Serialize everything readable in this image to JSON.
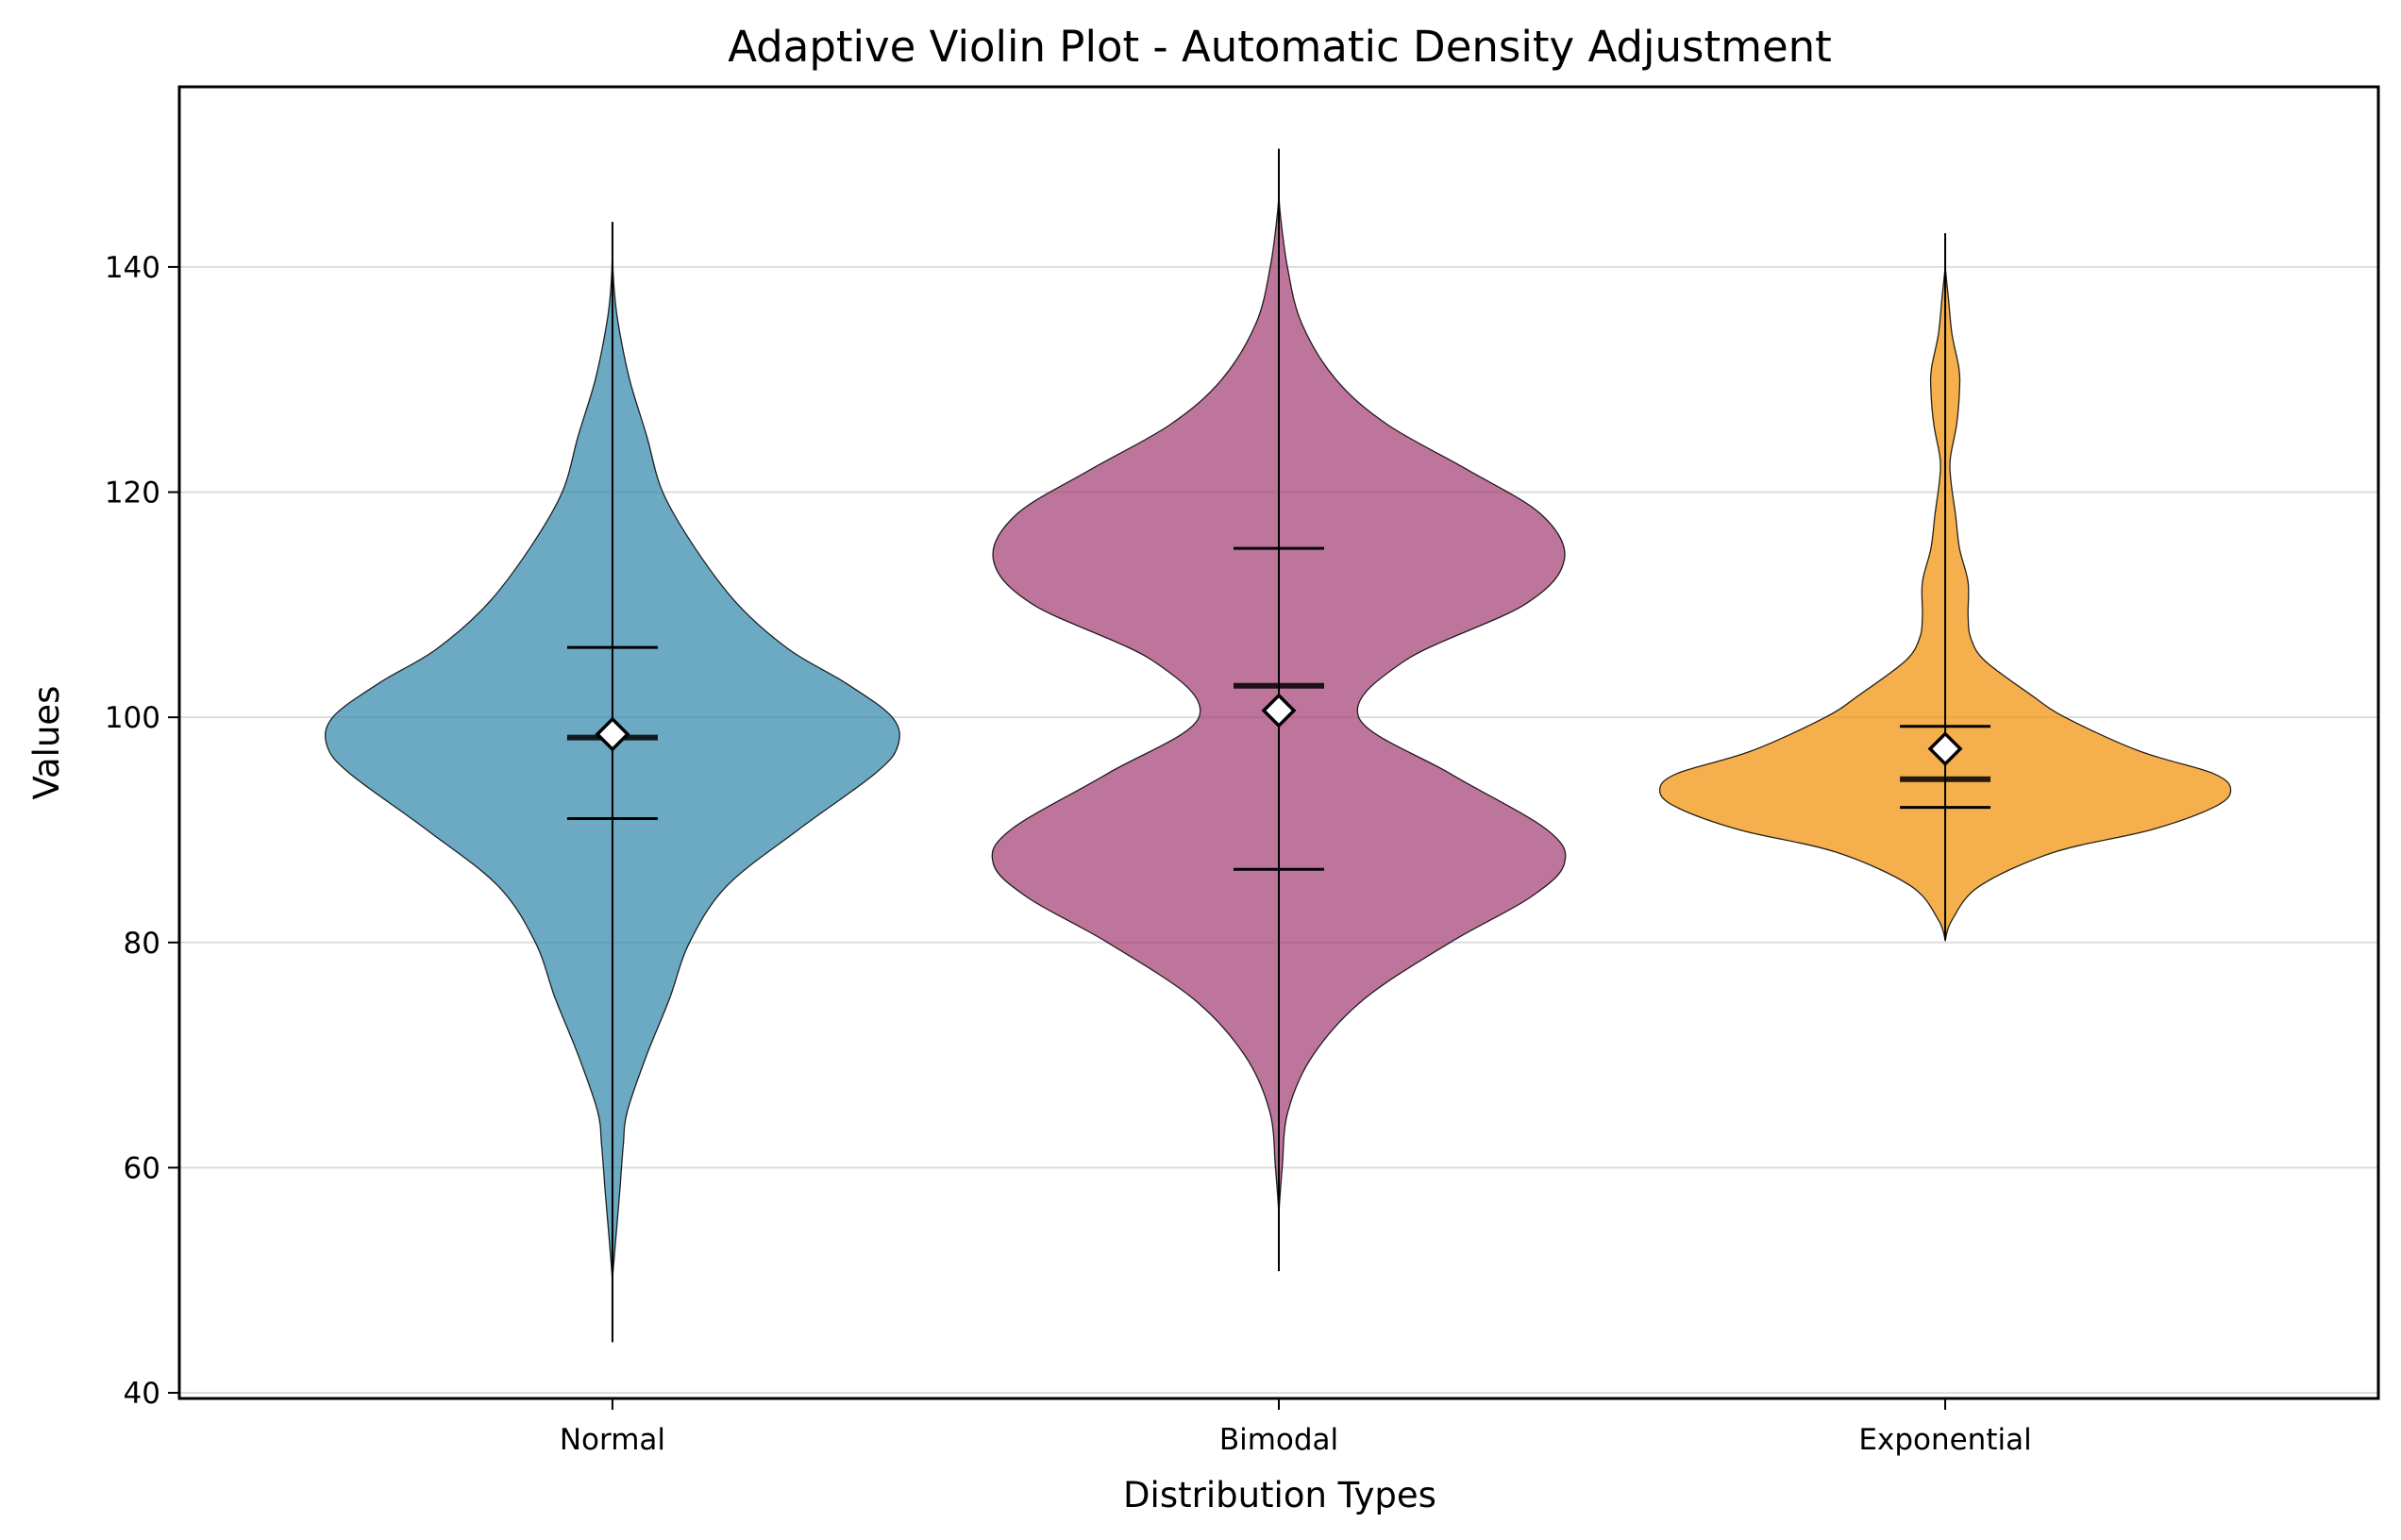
{
  "chart_data": {
    "type": "violin",
    "title": "Adaptive Violin Plot - Automatic Density Adjustment",
    "xlabel": "Distribution Types",
    "ylabel": "Values",
    "ylim": [
      39.5,
      156
    ],
    "yticks": [
      40,
      60,
      80,
      100,
      120,
      140
    ],
    "grid": "y",
    "categories": [
      "Normal",
      "Bimodal",
      "Exponential"
    ],
    "series": [
      {
        "category": "Normal",
        "color": "#2E86AB",
        "min": 44.5,
        "max": 144,
        "q1": 91,
        "median": 98.2,
        "q3": 106.2,
        "mean": 98.5,
        "density": [
          [
            50,
            0.0
          ],
          [
            52,
            0.003
          ],
          [
            55,
            0.008
          ],
          [
            58,
            0.013
          ],
          [
            62,
            0.019
          ],
          [
            65,
            0.026
          ],
          [
            70,
            0.06
          ],
          [
            75,
            0.1
          ],
          [
            80,
            0.135
          ],
          [
            85,
            0.2
          ],
          [
            90,
            0.325
          ],
          [
            95,
            0.46
          ],
          [
            97.5,
            0.5
          ],
          [
            100,
            0.49
          ],
          [
            103,
            0.41
          ],
          [
            106,
            0.31
          ],
          [
            110,
            0.22
          ],
          [
            115,
            0.145
          ],
          [
            120,
            0.088
          ],
          [
            125,
            0.06
          ],
          [
            130,
            0.03
          ],
          [
            135,
            0.01
          ],
          [
            138,
            0.003
          ],
          [
            141,
            0.0
          ]
        ]
      },
      {
        "category": "Bimodal",
        "color": "#A23B72",
        "min": 50.8,
        "max": 150.5,
        "q1": 86.5,
        "median": 102.8,
        "q3": 115,
        "mean": 100.6,
        "density": [
          [
            56,
            0.0
          ],
          [
            60,
            0.006
          ],
          [
            65,
            0.016
          ],
          [
            70,
            0.06
          ],
          [
            75,
            0.15
          ],
          [
            80,
            0.3
          ],
          [
            84,
            0.44
          ],
          [
            87,
            0.5
          ],
          [
            90,
            0.47
          ],
          [
            95,
            0.3
          ],
          [
            100,
            0.14
          ],
          [
            105,
            0.22
          ],
          [
            110,
            0.43
          ],
          [
            114,
            0.5
          ],
          [
            118,
            0.46
          ],
          [
            122,
            0.33
          ],
          [
            126,
            0.19
          ],
          [
            130,
            0.1
          ],
          [
            135,
            0.04
          ],
          [
            140,
            0.015
          ],
          [
            145,
            0.002
          ],
          [
            147,
            0.0
          ]
        ]
      },
      {
        "category": "Exponential",
        "color": "#F18F01",
        "min": 80.2,
        "max": 143,
        "q1": 92,
        "median": 94.5,
        "q3": 99.2,
        "mean": 97.2,
        "density": [
          [
            80.2,
            0.0
          ],
          [
            82,
            0.012
          ],
          [
            85,
            0.06
          ],
          [
            88,
            0.19
          ],
          [
            90,
            0.36
          ],
          [
            92,
            0.47
          ],
          [
            93.5,
            0.5
          ],
          [
            95,
            0.47
          ],
          [
            97,
            0.34
          ],
          [
            100,
            0.21
          ],
          [
            102,
            0.15
          ],
          [
            105,
            0.07
          ],
          [
            107,
            0.045
          ],
          [
            109,
            0.04
          ],
          [
            112,
            0.04
          ],
          [
            115,
            0.025
          ],
          [
            118,
            0.018
          ],
          [
            121,
            0.01
          ],
          [
            123,
            0.009
          ],
          [
            126,
            0.02
          ],
          [
            129,
            0.025
          ],
          [
            131,
            0.024
          ],
          [
            134,
            0.012
          ],
          [
            137,
            0.006
          ],
          [
            140,
            0.0
          ]
        ]
      }
    ]
  }
}
